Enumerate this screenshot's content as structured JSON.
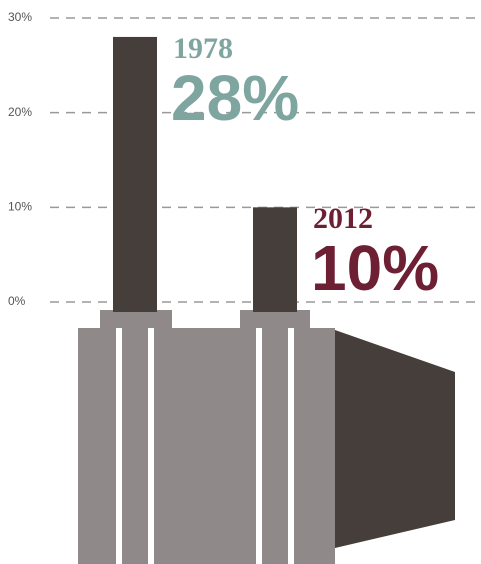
{
  "chart_data": {
    "type": "bar",
    "categories": [
      "1978",
      "2012"
    ],
    "values": [
      28,
      10
    ],
    "value_labels": [
      "28%",
      "10%"
    ],
    "color": "#463e3b",
    "label_colors": [
      "#7ea59f",
      "#6d1f33"
    ],
    "ylim": [
      0,
      30
    ],
    "yticks": [
      {
        "value": 0,
        "label": "0%"
      },
      {
        "value": 10,
        "label": "10%"
      },
      {
        "value": 20,
        "label": "20%"
      },
      {
        "value": 30,
        "label": "30%"
      }
    ],
    "grid": true
  }
}
